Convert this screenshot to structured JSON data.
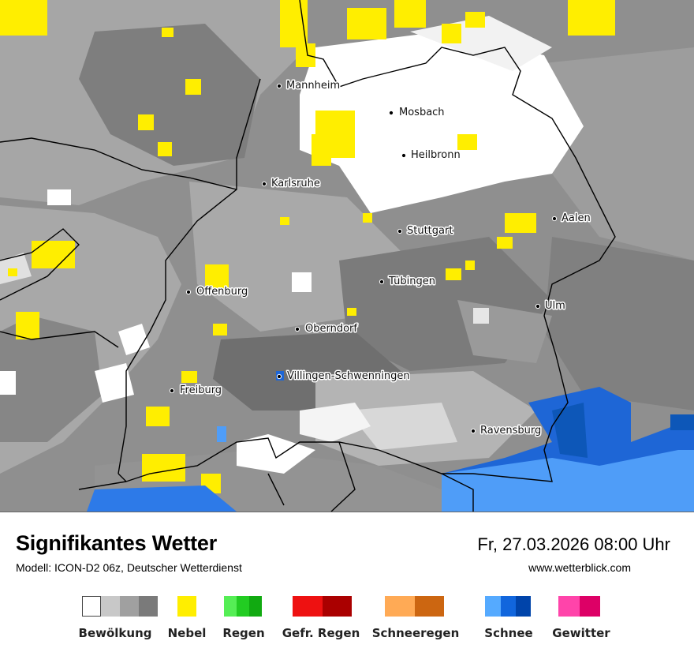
{
  "map": {
    "cities": [
      {
        "name": "Mannheim"
      },
      {
        "name": "Mosbach"
      },
      {
        "name": "Heilbronn"
      },
      {
        "name": "Karlsruhe"
      },
      {
        "name": "Stuttgart"
      },
      {
        "name": "Aalen"
      },
      {
        "name": "Tübingen"
      },
      {
        "name": "Offenburg"
      },
      {
        "name": "Ulm"
      },
      {
        "name": "Oberndorf"
      },
      {
        "name": "Villingen-Schwenningen"
      },
      {
        "name": "Freiburg"
      },
      {
        "name": "Ravensburg"
      }
    ]
  },
  "footer": {
    "title": "Signifikantes Wetter",
    "subtitle": "Modell: ICON-D2 06z, Deutscher Wetterdienst",
    "datetime": "Fr, 27.03.2026 08:00 Uhr",
    "website": "www.wetterblick.com"
  },
  "legend": [
    {
      "label": "Bewölkung",
      "colors": [
        "#ffffff",
        "#c8c8c8",
        "#a0a0a0",
        "#7a7a7a"
      ]
    },
    {
      "label": "Nebel",
      "colors": [
        "#ffee00"
      ]
    },
    {
      "label": "Regen",
      "colors": [
        "#55ee55",
        "#22cc22",
        "#11aa11"
      ]
    },
    {
      "label": "Gefr. Regen",
      "colors": [
        "#ee1111",
        "#aa0000"
      ]
    },
    {
      "label": "Schneeregen",
      "colors": [
        "#ffaa55",
        "#cc6611"
      ]
    },
    {
      "label": "Schnee",
      "colors": [
        "#55aaff",
        "#1166dd",
        "#0044aa"
      ]
    },
    {
      "label": "Gewitter",
      "colors": [
        "#ff44aa",
        "#dd0066"
      ]
    }
  ]
}
